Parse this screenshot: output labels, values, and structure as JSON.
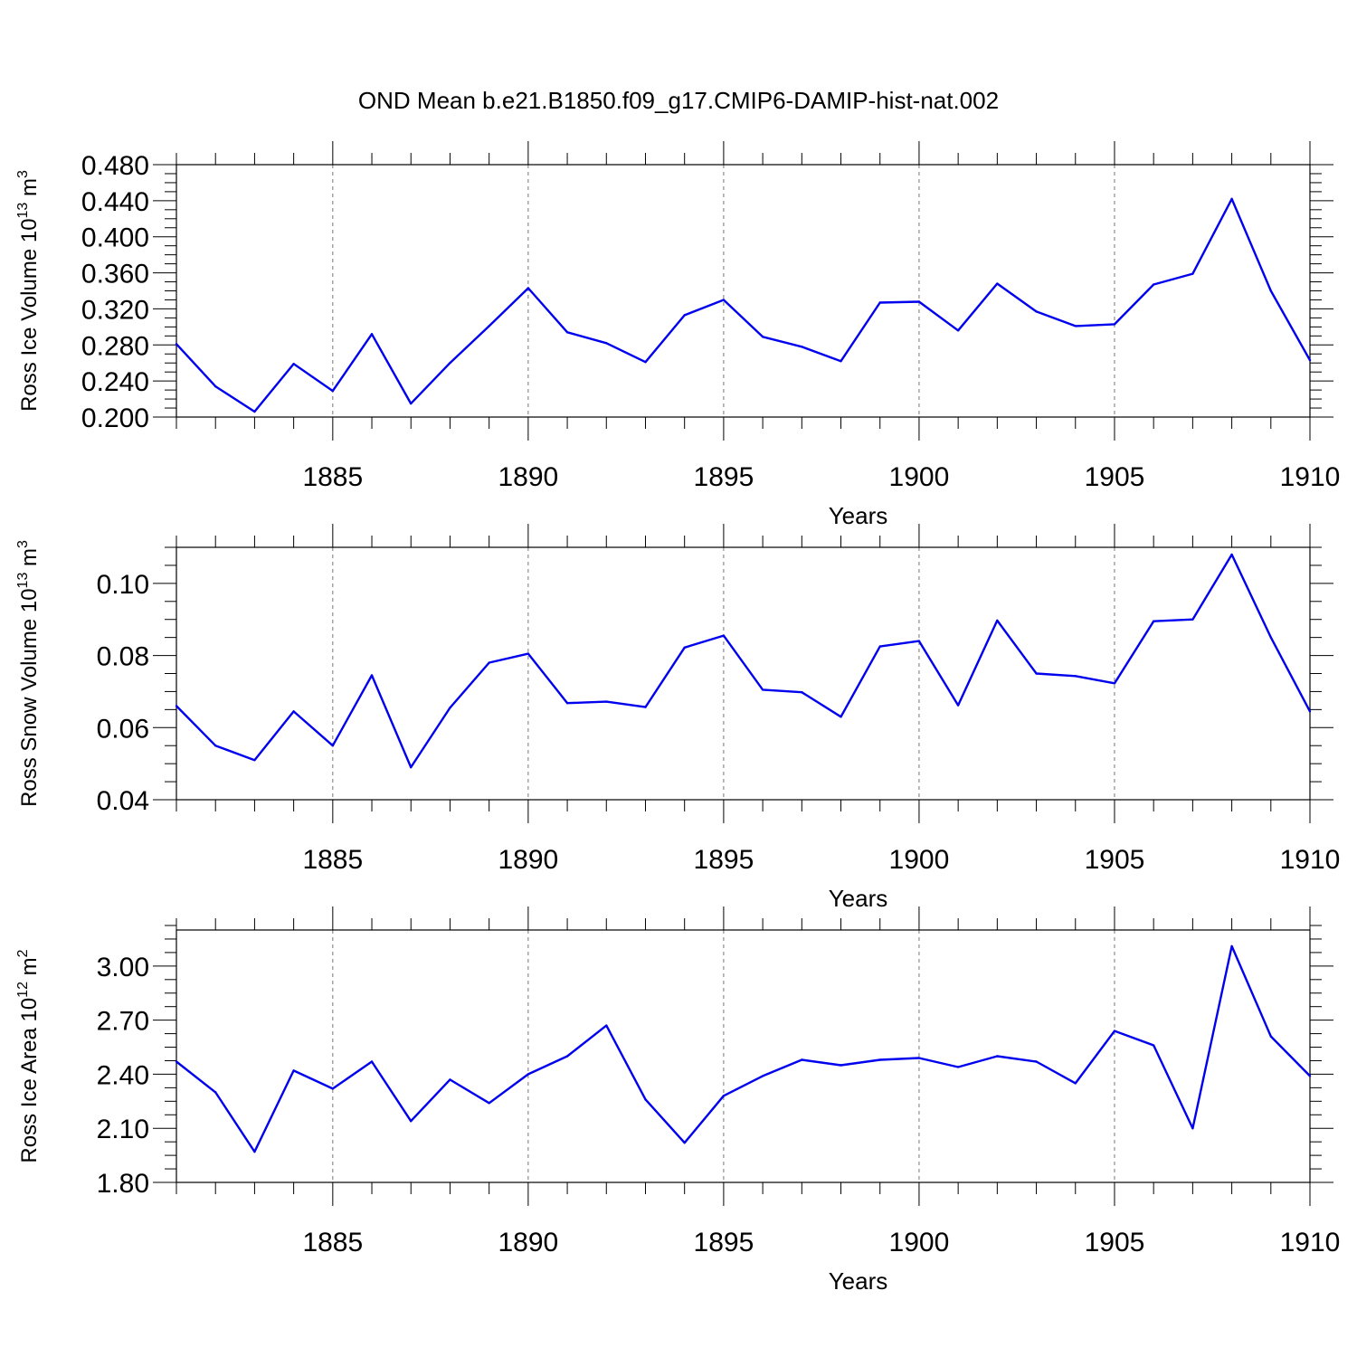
{
  "title": "OND Mean b.e21.B1850.f09_g17.CMIP6-DAMIP-hist-nat.002",
  "colors": {
    "line": "#0000ee",
    "axis": "#000000",
    "grid": "#777777"
  },
  "chart_data": [
    {
      "type": "line",
      "ylabel": {
        "text": "Ross Ice Volume 10",
        "sup": "13",
        "unit": " m",
        "unitsup": "3"
      },
      "xlabel": "Years",
      "xlim": [
        1881,
        1910
      ],
      "ylim": [
        0.2,
        0.48
      ],
      "yticks": [
        0.2,
        0.24,
        0.28,
        0.32,
        0.36,
        0.4,
        0.44,
        0.48
      ],
      "ytick_labels": [
        "0.200",
        "0.240",
        "0.280",
        "0.320",
        "0.360",
        "0.400",
        "0.440",
        "0.480"
      ],
      "xticks": [
        1885,
        1890,
        1895,
        1900,
        1905,
        1910
      ],
      "xtick_labels": [
        "1885",
        "1890",
        "1895",
        "1900",
        "1905",
        "1910"
      ],
      "gridlines_x": [
        1885,
        1890,
        1895,
        1900,
        1905
      ],
      "x": [
        1881,
        1882,
        1883,
        1884,
        1885,
        1886,
        1887,
        1888,
        1889,
        1890,
        1891,
        1892,
        1893,
        1894,
        1895,
        1896,
        1897,
        1898,
        1899,
        1900,
        1901,
        1902,
        1903,
        1904,
        1905,
        1906,
        1907,
        1908,
        1909,
        1910
      ],
      "values": [
        0.281,
        0.234,
        0.206,
        0.259,
        0.229,
        0.292,
        0.215,
        0.26,
        0.301,
        0.343,
        0.294,
        0.282,
        0.261,
        0.313,
        0.33,
        0.289,
        0.278,
        0.262,
        0.327,
        0.328,
        0.296,
        0.348,
        0.317,
        0.301,
        0.303,
        0.347,
        0.359,
        0.442,
        0.34,
        0.263
      ]
    },
    {
      "type": "line",
      "ylabel": {
        "text": "Ross Snow Volume 10",
        "sup": "13",
        "unit": " m",
        "unitsup": "3"
      },
      "xlabel": "Years",
      "xlim": [
        1881,
        1910
      ],
      "ylim": [
        0.04,
        0.11
      ],
      "yticks": [
        0.04,
        0.06,
        0.08,
        0.1
      ],
      "ytick_labels": [
        "0.04",
        "0.06",
        "0.08",
        "0.10"
      ],
      "xticks": [
        1885,
        1890,
        1895,
        1900,
        1905,
        1910
      ],
      "xtick_labels": [
        "1885",
        "1890",
        "1895",
        "1900",
        "1905",
        "1910"
      ],
      "gridlines_x": [
        1885,
        1890,
        1895,
        1900,
        1905
      ],
      "x": [
        1881,
        1882,
        1883,
        1884,
        1885,
        1886,
        1887,
        1888,
        1889,
        1890,
        1891,
        1892,
        1893,
        1894,
        1895,
        1896,
        1897,
        1898,
        1899,
        1900,
        1901,
        1902,
        1903,
        1904,
        1905,
        1906,
        1907,
        1908,
        1909,
        1910
      ],
      "values": [
        0.066,
        0.055,
        0.051,
        0.0645,
        0.055,
        0.0745,
        0.049,
        0.0655,
        0.078,
        0.0805,
        0.0668,
        0.0672,
        0.0657,
        0.0822,
        0.0855,
        0.0705,
        0.0698,
        0.063,
        0.0825,
        0.084,
        0.0662,
        0.0897,
        0.075,
        0.0743,
        0.0723,
        0.0895,
        0.09,
        0.108,
        0.085,
        0.0645
      ]
    },
    {
      "type": "line",
      "ylabel": {
        "text": "Ross Ice Area 10",
        "sup": "12",
        "unit": " m",
        "unitsup": "2"
      },
      "xlabel": "Years",
      "xlim": [
        1881,
        1910
      ],
      "ylim": [
        1.8,
        3.2
      ],
      "yticks": [
        1.8,
        2.1,
        2.4,
        2.7,
        3.0
      ],
      "ytick_labels": [
        "1.80",
        "2.10",
        "2.40",
        "2.70",
        "3.00"
      ],
      "xticks": [
        1885,
        1890,
        1895,
        1900,
        1905,
        1910
      ],
      "xtick_labels": [
        "1885",
        "1890",
        "1895",
        "1900",
        "1905",
        "1910"
      ],
      "gridlines_x": [
        1885,
        1890,
        1895,
        1900,
        1905
      ],
      "x": [
        1881,
        1882,
        1883,
        1884,
        1885,
        1886,
        1887,
        1888,
        1889,
        1890,
        1891,
        1892,
        1893,
        1894,
        1895,
        1896,
        1897,
        1898,
        1899,
        1900,
        1901,
        1902,
        1903,
        1904,
        1905,
        1906,
        1907,
        1908,
        1909,
        1910
      ],
      "values": [
        2.47,
        2.3,
        1.97,
        2.42,
        2.32,
        2.47,
        2.14,
        2.37,
        2.24,
        2.4,
        2.5,
        2.67,
        2.26,
        2.02,
        2.28,
        2.39,
        2.48,
        2.45,
        2.48,
        2.49,
        2.44,
        2.5,
        2.47,
        2.35,
        2.64,
        2.56,
        2.1,
        3.11,
        2.61,
        2.39
      ]
    }
  ]
}
